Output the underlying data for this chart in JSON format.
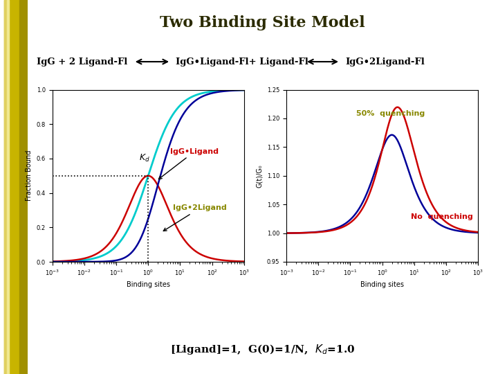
{
  "title": "Two Binding Site Model",
  "title_color": "#2B2B00",
  "title_fontsize": 16,
  "background_color": "#FFFFFF",
  "left_bar_color": "#C8B400",
  "plot1_xlabel": "Binding sites",
  "plot1_ylabel": "Fraction Bound",
  "plot2_xlabel": "Binding sites",
  "plot2_ylabel": "G(t)/G₀",
  "plot2_ylim": [
    0.95,
    1.25
  ],
  "kd": 1.0,
  "cyan_color": "#00CCCC",
  "red_color": "#CC0000",
  "blue_color": "#000099",
  "olive_color": "#888800",
  "label_50quench": "50%  quenching",
  "label_noquench": "No  quenching",
  "annotation_IgGLigand": "IgG•Ligand",
  "annotation_IgG2Ligand": "IgG•2Ligand"
}
